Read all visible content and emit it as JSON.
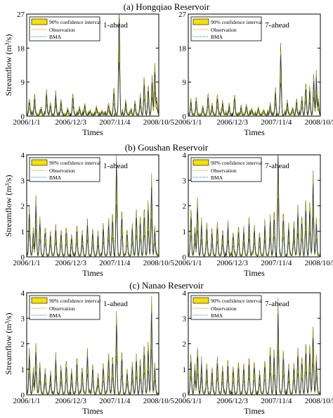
{
  "figure": {
    "rows": [
      {
        "title": "(a) Hongqiao Reservoir",
        "ylabel": "Streamflow (m³/s)",
        "xlabel": "Times",
        "y_ticks": [
          0,
          9,
          18,
          27
        ],
        "ylim": [
          0,
          27
        ],
        "panels": [
          {
            "mode": "1-ahead",
            "peaks": [
              [
                0.02,
                3.8
              ],
              [
                0.06,
                4.5
              ],
              [
                0.11,
                1.6
              ],
              [
                0.15,
                5.4
              ],
              [
                0.18,
                2.4
              ],
              [
                0.22,
                4.8
              ],
              [
                0.26,
                3.3
              ],
              [
                0.31,
                1.2
              ],
              [
                0.35,
                5.0
              ],
              [
                0.4,
                1.6
              ],
              [
                0.44,
                2.4
              ],
              [
                0.48,
                1.1
              ],
              [
                0.53,
                1.5
              ],
              [
                0.57,
                1.0
              ],
              [
                0.62,
                2.7
              ],
              [
                0.66,
                6.3
              ],
              [
                0.7,
                25.3
              ],
              [
                0.75,
                3.0
              ],
              [
                0.79,
                1.4
              ],
              [
                0.82,
                3.3
              ],
              [
                0.86,
                4.4
              ],
              [
                0.89,
                8.5
              ],
              [
                0.92,
                6.8
              ],
              [
                0.95,
                9.0
              ],
              [
                0.97,
                11.7
              ],
              [
                0.985,
                3.4
              ]
            ]
          },
          {
            "mode": "7-ahead",
            "peaks": [
              [
                0.02,
                3.5
              ],
              [
                0.06,
                4.1
              ],
              [
                0.11,
                1.8
              ],
              [
                0.15,
                5.1
              ],
              [
                0.18,
                2.6
              ],
              [
                0.22,
                4.4
              ],
              [
                0.26,
                3.0
              ],
              [
                0.31,
                1.4
              ],
              [
                0.35,
                4.6
              ],
              [
                0.4,
                1.7
              ],
              [
                0.44,
                2.1
              ],
              [
                0.48,
                1.3
              ],
              [
                0.53,
                1.7
              ],
              [
                0.57,
                1.2
              ],
              [
                0.62,
                2.5
              ],
              [
                0.66,
                5.8
              ],
              [
                0.7,
                16.7
              ],
              [
                0.75,
                3.2
              ],
              [
                0.79,
                1.7
              ],
              [
                0.82,
                3.1
              ],
              [
                0.86,
                4.1
              ],
              [
                0.89,
                7.9
              ],
              [
                0.92,
                6.1
              ],
              [
                0.95,
                8.6
              ],
              [
                0.97,
                9.2
              ],
              [
                0.985,
                3.0
              ]
            ]
          }
        ]
      },
      {
        "title": "(b) Goushan Reservoir",
        "ylabel": "Streamflow (m³/s)",
        "xlabel": "Times",
        "y_ticks": [
          0,
          1,
          2,
          3,
          4
        ],
        "ylim": [
          0,
          4
        ],
        "panels": [
          {
            "mode": "1-ahead",
            "peaks": [
              [
                0.02,
                1.8
              ],
              [
                0.05,
                0.9
              ],
              [
                0.07,
                1.95
              ],
              [
                0.1,
                1.2
              ],
              [
                0.14,
                1.0
              ],
              [
                0.18,
                0.8
              ],
              [
                0.22,
                1.1
              ],
              [
                0.26,
                0.9
              ],
              [
                0.3,
                1.0
              ],
              [
                0.34,
                0.7
              ],
              [
                0.38,
                1.0
              ],
              [
                0.42,
                0.8
              ],
              [
                0.46,
                1.1
              ],
              [
                0.5,
                0.9
              ],
              [
                0.54,
                0.7
              ],
              [
                0.58,
                1.0
              ],
              [
                0.62,
                1.2
              ],
              [
                0.65,
                1.4
              ],
              [
                0.68,
                3.7
              ],
              [
                0.72,
                1.5
              ],
              [
                0.76,
                0.9
              ],
              [
                0.8,
                1.0
              ],
              [
                0.83,
                1.4
              ],
              [
                0.86,
                1.3
              ],
              [
                0.89,
                1.7
              ],
              [
                0.92,
                1.8
              ],
              [
                0.945,
                2.6
              ],
              [
                0.97,
                1.0
              ]
            ]
          },
          {
            "mode": "7-ahead",
            "peaks": [
              [
                0.02,
                1.6
              ],
              [
                0.05,
                1.0
              ],
              [
                0.07,
                1.9
              ],
              [
                0.1,
                1.2
              ],
              [
                0.14,
                1.1
              ],
              [
                0.18,
                0.9
              ],
              [
                0.22,
                1.2
              ],
              [
                0.26,
                0.9
              ],
              [
                0.3,
                1.1
              ],
              [
                0.34,
                0.8
              ],
              [
                0.38,
                1.0
              ],
              [
                0.42,
                0.9
              ],
              [
                0.46,
                1.2
              ],
              [
                0.5,
                1.0
              ],
              [
                0.54,
                0.8
              ],
              [
                0.58,
                1.1
              ],
              [
                0.62,
                1.3
              ],
              [
                0.65,
                1.5
              ],
              [
                0.68,
                4.0
              ],
              [
                0.72,
                1.6
              ],
              [
                0.76,
                1.0
              ],
              [
                0.8,
                1.1
              ],
              [
                0.83,
                1.5
              ],
              [
                0.86,
                1.4
              ],
              [
                0.89,
                1.9
              ],
              [
                0.92,
                1.7
              ],
              [
                0.945,
                2.9
              ],
              [
                0.97,
                1.1
              ]
            ]
          }
        ]
      },
      {
        "title": "(c) Nanao Reservoir",
        "ylabel": "Streamflow (m³/s)",
        "xlabel": "Times",
        "y_ticks": [
          0,
          1,
          2,
          3,
          4
        ],
        "ylim": [
          0,
          4
        ],
        "panels": [
          {
            "mode": "1-ahead",
            "peaks": [
              [
                0.02,
                1.5
              ],
              [
                0.05,
                0.8
              ],
              [
                0.07,
                1.7
              ],
              [
                0.1,
                1.0
              ],
              [
                0.14,
                0.9
              ],
              [
                0.18,
                0.7
              ],
              [
                0.22,
                1.3
              ],
              [
                0.26,
                0.9
              ],
              [
                0.3,
                1.1
              ],
              [
                0.34,
                0.8
              ],
              [
                0.38,
                1.2
              ],
              [
                0.42,
                0.9
              ],
              [
                0.46,
                1.4
              ],
              [
                0.5,
                1.0
              ],
              [
                0.54,
                0.7
              ],
              [
                0.58,
                1.1
              ],
              [
                0.62,
                1.4
              ],
              [
                0.65,
                1.3
              ],
              [
                0.68,
                2.75
              ],
              [
                0.72,
                1.4
              ],
              [
                0.76,
                0.8
              ],
              [
                0.8,
                1.0
              ],
              [
                0.83,
                1.4
              ],
              [
                0.86,
                1.2
              ],
              [
                0.89,
                1.7
              ],
              [
                0.92,
                1.6
              ],
              [
                0.945,
                3.0
              ],
              [
                0.97,
                1.1
              ]
            ]
          },
          {
            "mode": "7-ahead",
            "peaks": [
              [
                0.02,
                1.4
              ],
              [
                0.05,
                0.9
              ],
              [
                0.07,
                1.6
              ],
              [
                0.1,
                1.1
              ],
              [
                0.14,
                1.0
              ],
              [
                0.18,
                0.8
              ],
              [
                0.22,
                1.2
              ],
              [
                0.26,
                1.0
              ],
              [
                0.3,
                1.2
              ],
              [
                0.34,
                0.9
              ],
              [
                0.38,
                1.1
              ],
              [
                0.42,
                1.0
              ],
              [
                0.46,
                1.3
              ],
              [
                0.5,
                1.1
              ],
              [
                0.54,
                0.8
              ],
              [
                0.58,
                1.2
              ],
              [
                0.62,
                1.5
              ],
              [
                0.65,
                1.4
              ],
              [
                0.68,
                3.0
              ],
              [
                0.72,
                1.5
              ],
              [
                0.76,
                0.9
              ],
              [
                0.8,
                1.1
              ],
              [
                0.83,
                1.5
              ],
              [
                0.86,
                1.3
              ],
              [
                0.89,
                1.8
              ],
              [
                0.92,
                1.7
              ],
              [
                0.945,
                2.5
              ],
              [
                0.97,
                1.2
              ]
            ]
          }
        ]
      }
    ],
    "x_ticks": [
      "2006/1/1",
      "2006/12/3",
      "2007/11/4",
      "2008/10/5"
    ],
    "legend": {
      "ci": "90% confidence interval",
      "obs": "Observation",
      "bma": "BMA"
    },
    "colors": {
      "ci_fill": "#f5e10a",
      "ci_edge": "#6b6300",
      "observation": "#f0932b",
      "bma": "#1b7fb8"
    }
  },
  "chart_data": [
    {
      "type": "line",
      "title": "(a) Hongqiao Reservoir",
      "panel": "1-ahead",
      "xlabel": "Times",
      "ylabel": "Streamflow (m³/s)",
      "ylim": [
        0,
        27
      ],
      "x": [
        "2006/1/1",
        "2006/12/3",
        "2007/11/4",
        "2008/10/5"
      ],
      "series": [
        {
          "name": "90% confidence interval"
        },
        {
          "name": "Observation"
        },
        {
          "name": "BMA"
        }
      ],
      "max_peak": 25.3
    },
    {
      "type": "line",
      "title": "(a) Hongqiao Reservoir",
      "panel": "7-ahead",
      "xlabel": "Times",
      "ylabel": "Streamflow (m³/s)",
      "ylim": [
        0,
        27
      ],
      "x": [
        "2006/1/1",
        "2006/12/3",
        "2007/11/4",
        "2008/10/5"
      ],
      "series": [
        {
          "name": "90% confidence interval"
        },
        {
          "name": "Observation"
        },
        {
          "name": "BMA"
        }
      ],
      "max_peak": 16.7
    },
    {
      "type": "line",
      "title": "(b) Goushan Reservoir",
      "panel": "1-ahead",
      "xlabel": "Times",
      "ylabel": "Streamflow (m³/s)",
      "ylim": [
        0,
        4
      ],
      "x": [
        "2006/1/1",
        "2006/12/3",
        "2007/11/4",
        "2008/10/5"
      ],
      "series": [
        {
          "name": "90% confidence interval"
        },
        {
          "name": "Observation"
        },
        {
          "name": "BMA"
        }
      ],
      "max_peak": 3.7
    },
    {
      "type": "line",
      "title": "(b) Goushan Reservoir",
      "panel": "7-ahead",
      "xlabel": "Times",
      "ylabel": "Streamflow (m³/s)",
      "ylim": [
        0,
        4
      ],
      "x": [
        "2006/1/1",
        "2006/12/3",
        "2007/11/4",
        "2008/10/5"
      ],
      "series": [
        {
          "name": "90% confidence interval"
        },
        {
          "name": "Observation"
        },
        {
          "name": "BMA"
        }
      ],
      "max_peak": 4.0
    },
    {
      "type": "line",
      "title": "(c) Nanao Reservoir",
      "panel": "1-ahead",
      "xlabel": "Times",
      "ylabel": "Streamflow (m³/s)",
      "ylim": [
        0,
        4
      ],
      "x": [
        "2006/1/1",
        "2006/12/3",
        "2007/11/4",
        "2008/10/5"
      ],
      "series": [
        {
          "name": "90% confidence interval"
        },
        {
          "name": "Observation"
        },
        {
          "name": "BMA"
        }
      ],
      "max_peak": 3.0
    },
    {
      "type": "line",
      "title": "(c) Nanao Reservoir",
      "panel": "7-ahead",
      "xlabel": "Times",
      "ylabel": "Streamflow (m³/s)",
      "ylim": [
        0,
        4
      ],
      "x": [
        "2006/1/1",
        "2006/12/3",
        "2007/11/4",
        "2008/10/5"
      ],
      "series": [
        {
          "name": "90% confidence interval"
        },
        {
          "name": "Observation"
        },
        {
          "name": "BMA"
        }
      ],
      "max_peak": 3.0
    }
  ]
}
